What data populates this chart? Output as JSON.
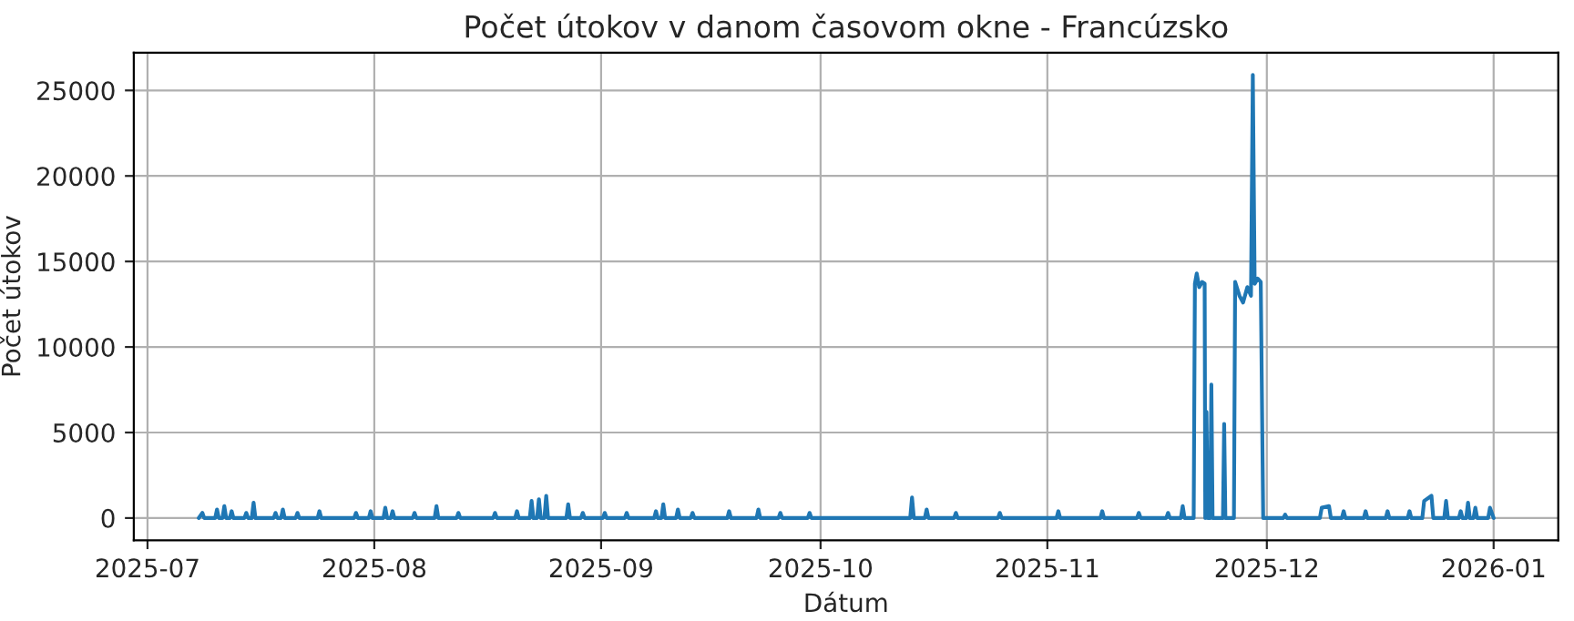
{
  "chart_data": {
    "type": "line",
    "title": "Počet útokov v danom časovom okne - Francúzsko",
    "xlabel": "Dátum",
    "ylabel": "Počet útokov",
    "xlim": [
      "2025-06-29T03:00",
      "2026-01-09T20:00"
    ],
    "ylim": [
      -1300,
      27200
    ],
    "xticks": [
      {
        "value": "2025-07-01",
        "label": "2025-07"
      },
      {
        "value": "2025-08-01",
        "label": "2025-08"
      },
      {
        "value": "2025-09-01",
        "label": "2025-09"
      },
      {
        "value": "2025-10-01",
        "label": "2025-10"
      },
      {
        "value": "2025-11-01",
        "label": "2025-11"
      },
      {
        "value": "2025-12-01",
        "label": "2025-12"
      },
      {
        "value": "2026-01-01",
        "label": "2026-01"
      }
    ],
    "yticks": [
      0,
      5000,
      10000,
      15000,
      20000,
      25000
    ],
    "grid": true,
    "series": [
      {
        "color": "#1f77b4",
        "x": [
          "2025-07-08T00:00",
          "2025-07-08T12:00",
          "2025-07-08T18:00",
          "2025-07-10T06:00",
          "2025-07-10T12:00",
          "2025-07-10T18:00",
          "2025-07-11T06:00",
          "2025-07-11T12:00",
          "2025-07-11T18:00",
          "2025-07-12T06:00",
          "2025-07-12T12:00",
          "2025-07-12T18:00",
          "2025-07-14T06:00",
          "2025-07-14T12:00",
          "2025-07-14T18:00",
          "2025-07-15T06:00",
          "2025-07-15T12:00",
          "2025-07-15T18:00",
          "2025-07-18T06:00",
          "2025-07-18T12:00",
          "2025-07-18T18:00",
          "2025-07-19T06:00",
          "2025-07-19T12:00",
          "2025-07-19T18:00",
          "2025-07-21T06:00",
          "2025-07-21T12:00",
          "2025-07-21T18:00",
          "2025-07-24T06:00",
          "2025-07-24T12:00",
          "2025-07-24T18:00",
          "2025-07-29T06:00",
          "2025-07-29T12:00",
          "2025-07-29T18:00",
          "2025-07-31T06:00",
          "2025-07-31T12:00",
          "2025-07-31T18:00",
          "2025-08-02T06:00",
          "2025-08-02T12:00",
          "2025-08-02T18:00",
          "2025-08-03T06:00",
          "2025-08-03T12:00",
          "2025-08-03T18:00",
          "2025-08-06T06:00",
          "2025-08-06T12:00",
          "2025-08-06T18:00",
          "2025-08-09T06:00",
          "2025-08-09T12:00",
          "2025-08-09T18:00",
          "2025-08-12T06:00",
          "2025-08-12T12:00",
          "2025-08-12T18:00",
          "2025-08-17T06:00",
          "2025-08-17T12:00",
          "2025-08-17T18:00",
          "2025-08-20T06:00",
          "2025-08-20T12:00",
          "2025-08-20T18:00",
          "2025-08-22T06:00",
          "2025-08-22T12:00",
          "2025-08-22T18:00",
          "2025-08-23T06:00",
          "2025-08-23T12:00",
          "2025-08-23T18:00",
          "2025-08-24T06:00",
          "2025-08-24T12:00",
          "2025-08-24T18:00",
          "2025-08-27T06:00",
          "2025-08-27T12:00",
          "2025-08-27T18:00",
          "2025-08-29T06:00",
          "2025-08-29T12:00",
          "2025-08-29T18:00",
          "2025-09-01T06:00",
          "2025-09-01T12:00",
          "2025-09-01T18:00",
          "2025-09-04T06:00",
          "2025-09-04T12:00",
          "2025-09-04T18:00",
          "2025-09-08T06:00",
          "2025-09-08T12:00",
          "2025-09-08T18:00",
          "2025-09-09T06:00",
          "2025-09-09T12:00",
          "2025-09-09T18:00",
          "2025-09-11T06:00",
          "2025-09-11T12:00",
          "2025-09-11T18:00",
          "2025-09-13T06:00",
          "2025-09-13T12:00",
          "2025-09-13T18:00",
          "2025-09-18T06:00",
          "2025-09-18T12:00",
          "2025-09-18T18:00",
          "2025-09-22T06:00",
          "2025-09-22T12:00",
          "2025-09-22T18:00",
          "2025-09-25T06:00",
          "2025-09-25T12:00",
          "2025-09-25T18:00",
          "2025-09-29T06:00",
          "2025-09-29T12:00",
          "2025-09-29T18:00",
          "2025-10-13T06:00",
          "2025-10-13T12:00",
          "2025-10-13T18:00",
          "2025-10-15T06:00",
          "2025-10-15T12:00",
          "2025-10-15T18:00",
          "2025-10-19T06:00",
          "2025-10-19T12:00",
          "2025-10-19T18:00",
          "2025-10-25T06:00",
          "2025-10-25T12:00",
          "2025-10-25T18:00",
          "2025-11-02T06:00",
          "2025-11-02T12:00",
          "2025-11-02T18:00",
          "2025-11-08T06:00",
          "2025-11-08T12:00",
          "2025-11-08T18:00",
          "2025-11-13T06:00",
          "2025-11-13T12:00",
          "2025-11-13T18:00",
          "2025-11-17T06:00",
          "2025-11-17T12:00",
          "2025-11-17T18:00",
          "2025-11-19T06:00",
          "2025-11-19T12:00",
          "2025-11-19T18:00",
          "2025-11-21T00:00",
          "2025-11-21T04:00",
          "2025-11-21T10:00",
          "2025-11-21T18:00",
          "2025-11-22T04:00",
          "2025-11-22T12:00",
          "2025-11-22T14:00",
          "2025-11-22T18:00",
          "2025-11-22T22:00",
          "2025-11-23T06:00",
          "2025-11-23T10:00",
          "2025-11-23T14:00",
          "2025-11-25T00:00",
          "2025-11-25T04:00",
          "2025-11-25T08:00",
          "2025-11-26T12:00",
          "2025-11-26T16:00",
          "2025-11-27T06:00",
          "2025-11-27T18:00",
          "2025-11-28T08:00",
          "2025-11-28T20:00",
          "2025-11-29T02:00",
          "2025-11-29T08:00",
          "2025-11-29T18:00",
          "2025-11-30T04:00",
          "2025-11-30T12:00",
          "2025-11-30T16:00",
          "2025-12-03T06:00",
          "2025-12-03T12:00",
          "2025-12-03T18:00",
          "2025-12-08T06:00",
          "2025-12-08T12:00",
          "2025-12-09T12:00",
          "2025-12-09T18:00",
          "2025-12-11T06:00",
          "2025-12-11T12:00",
          "2025-12-11T18:00",
          "2025-12-14T06:00",
          "2025-12-14T12:00",
          "2025-12-14T18:00",
          "2025-12-17T06:00",
          "2025-12-17T12:00",
          "2025-12-17T18:00",
          "2025-12-20T06:00",
          "2025-12-20T12:00",
          "2025-12-20T18:00",
          "2025-12-22T06:00",
          "2025-12-22T12:00",
          "2025-12-23T12:00",
          "2025-12-23T18:00",
          "2025-12-25T06:00",
          "2025-12-25T12:00",
          "2025-12-25T18:00",
          "2025-12-27T06:00",
          "2025-12-27T12:00",
          "2025-12-27T18:00",
          "2025-12-28T06:00",
          "2025-12-28T12:00",
          "2025-12-28T18:00",
          "2025-12-29T06:00",
          "2025-12-29T12:00",
          "2025-12-29T18:00",
          "2025-12-31T06:00",
          "2025-12-31T12:00",
          "2026-01-01T00:00"
        ],
        "values": [
          0,
          300,
          0,
          0,
          500,
          0,
          0,
          700,
          0,
          0,
          400,
          0,
          0,
          300,
          0,
          0,
          900,
          0,
          0,
          300,
          0,
          0,
          500,
          0,
          0,
          300,
          0,
          0,
          400,
          0,
          0,
          300,
          0,
          0,
          400,
          0,
          0,
          600,
          0,
          0,
          400,
          0,
          0,
          300,
          0,
          0,
          700,
          0,
          0,
          300,
          0,
          0,
          300,
          0,
          0,
          400,
          0,
          0,
          1000,
          0,
          0,
          1100,
          0,
          0,
          1300,
          0,
          0,
          800,
          0,
          0,
          300,
          0,
          0,
          300,
          0,
          0,
          300,
          0,
          0,
          400,
          0,
          0,
          800,
          0,
          0,
          500,
          0,
          0,
          300,
          0,
          0,
          400,
          0,
          0,
          500,
          0,
          0,
          300,
          0,
          0,
          300,
          0,
          0,
          1200,
          0,
          0,
          500,
          0,
          0,
          300,
          0,
          0,
          300,
          0,
          0,
          400,
          0,
          0,
          400,
          0,
          0,
          300,
          0,
          0,
          300,
          0,
          0,
          700,
          0,
          0,
          13700,
          14300,
          13500,
          13800,
          13700,
          0,
          6200,
          0,
          0,
          7800,
          0,
          0,
          5500,
          0,
          0,
          13800,
          13000,
          12600,
          13500,
          13000,
          25900,
          13700,
          14000,
          13800,
          0,
          0,
          0,
          200,
          0,
          0,
          600,
          700,
          0,
          0,
          400,
          0,
          0,
          400,
          0,
          0,
          400,
          0,
          0,
          400,
          0,
          0,
          1000,
          1300,
          0,
          0,
          1000,
          0,
          0,
          400,
          0,
          0,
          900,
          0,
          0,
          600,
          0,
          0,
          600,
          0
        ]
      }
    ]
  }
}
